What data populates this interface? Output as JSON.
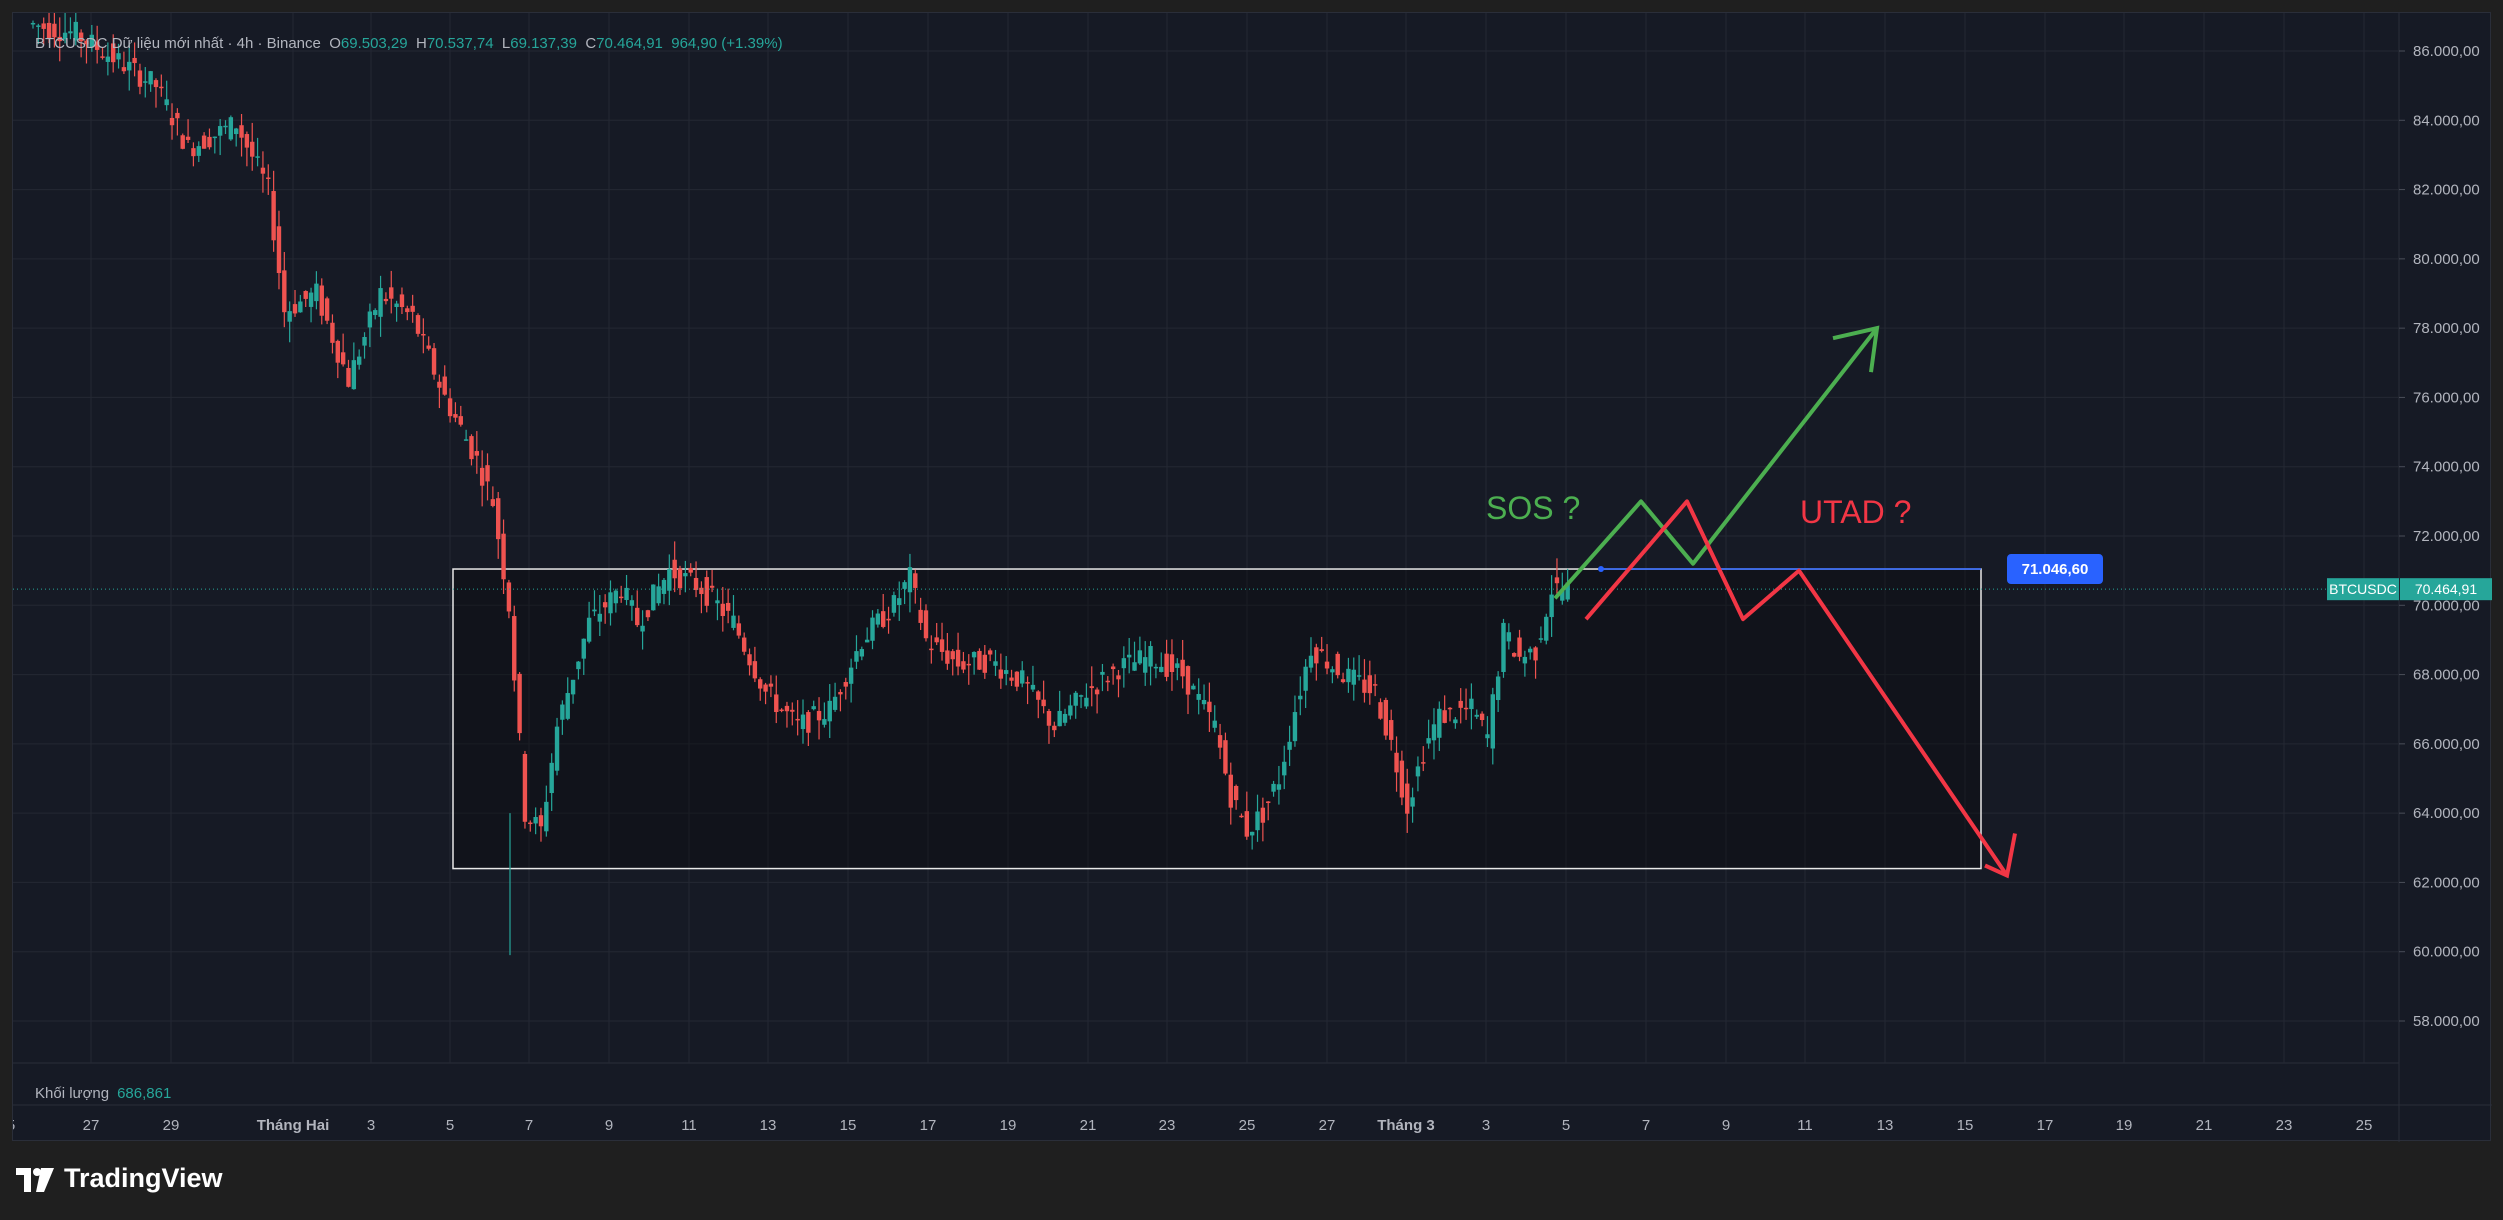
{
  "header": {
    "symbol": "BTCUSDC",
    "desc": "Dữ liệu mới nhất",
    "interval": "4h",
    "exchange": "Binance",
    "open_label": "O",
    "open": "69.503,29",
    "high_label": "H",
    "high": "70.537,74",
    "low_label": "L",
    "low": "69.137,39",
    "close_label": "C",
    "close": "70.464,91",
    "change": "964,90 (+1.39%)"
  },
  "volume": {
    "label": "Khối lượng",
    "value": "686,861"
  },
  "branding": {
    "name": "TradingView"
  },
  "colors": {
    "up": "#26a69a",
    "down": "#ef5350",
    "background": "#161a25",
    "range_box": "#e8e8e8",
    "green_scenario": "#4caf50",
    "red_scenario": "#f23645",
    "level_line": "#2962ff"
  },
  "chart_data": {
    "type": "candlestick",
    "interval": "4h",
    "x_axis_labels": [
      "5",
      "27",
      "29",
      "Tháng Hai",
      "3",
      "5",
      "7",
      "9",
      "11",
      "13",
      "15",
      "17",
      "19",
      "21",
      "23",
      "25",
      "27",
      "Tháng 3",
      "3",
      "5",
      "7",
      "9",
      "11",
      "13",
      "15",
      "17",
      "19",
      "21",
      "23",
      "25"
    ],
    "y_axis_labels": [
      "86.000,00",
      "84.000,00",
      "82.000,00",
      "80.000,00",
      "78.000,00",
      "76.000,00",
      "74.000,00",
      "72.000,00",
      "70.000,00",
      "68.000,00",
      "66.000,00",
      "64.000,00",
      "62.000,00",
      "60.000,00",
      "58.000,00"
    ],
    "ylim": [
      57000,
      86500
    ],
    "series_path_approx": [
      [
        0,
        86800
      ],
      [
        3,
        86500
      ],
      [
        8,
        85000
      ],
      [
        10,
        83200
      ],
      [
        13,
        83900
      ],
      [
        15,
        82000
      ],
      [
        16,
        78500
      ],
      [
        18,
        79000
      ],
      [
        20,
        76500
      ],
      [
        22,
        79000
      ],
      [
        24,
        78300
      ],
      [
        26,
        76000
      ],
      [
        28,
        74200
      ],
      [
        29,
        73000
      ],
      [
        30,
        70000
      ],
      [
        31,
        64000
      ],
      [
        32,
        63500
      ],
      [
        33,
        66500
      ],
      [
        35,
        69500
      ],
      [
        37,
        70500
      ],
      [
        38,
        69500
      ],
      [
        40,
        71000
      ],
      [
        42,
        70500
      ],
      [
        44,
        69500
      ],
      [
        46,
        67500
      ],
      [
        48,
        66500
      ],
      [
        50,
        67000
      ],
      [
        52,
        69000
      ],
      [
        54,
        70000
      ],
      [
        55,
        70800
      ],
      [
        56,
        69000
      ],
      [
        58,
        68300
      ],
      [
        60,
        68400
      ],
      [
        62,
        67800
      ],
      [
        64,
        66500
      ],
      [
        66,
        67500
      ],
      [
        68,
        68200
      ],
      [
        70,
        68500
      ],
      [
        72,
        68000
      ],
      [
        74,
        66500
      ],
      [
        75,
        64500
      ],
      [
        76,
        63500
      ],
      [
        77,
        64000
      ],
      [
        78,
        65000
      ],
      [
        79,
        67000
      ],
      [
        80,
        68800
      ],
      [
        82,
        68000
      ],
      [
        84,
        67500
      ],
      [
        85,
        66000
      ],
      [
        86,
        64200
      ],
      [
        87,
        65800
      ],
      [
        88,
        66800
      ],
      [
        90,
        67000
      ],
      [
        91,
        66200
      ],
      [
        92,
        69200
      ],
      [
        93,
        68500
      ],
      [
        94,
        68700
      ],
      [
        95,
        70464.91
      ]
    ],
    "last_price": {
      "symbol": "BTCUSDC",
      "value": "70.464,91"
    },
    "range_box": {
      "top": 71046.6,
      "bottom": 62400,
      "top_label": "71.046,60"
    },
    "annotations": [
      {
        "text": "SOS ?",
        "color": "green"
      },
      {
        "text": "UTAD ?",
        "color": "red"
      }
    ],
    "scenario_green": [
      [
        70200,
        0
      ],
      [
        73000,
        1
      ],
      [
        71200,
        2
      ],
      [
        78000,
        3
      ]
    ],
    "scenario_red": [
      [
        69600,
        0
      ],
      [
        73000,
        1
      ],
      [
        69600,
        2
      ],
      [
        71000,
        3
      ],
      [
        62200,
        4
      ]
    ]
  }
}
